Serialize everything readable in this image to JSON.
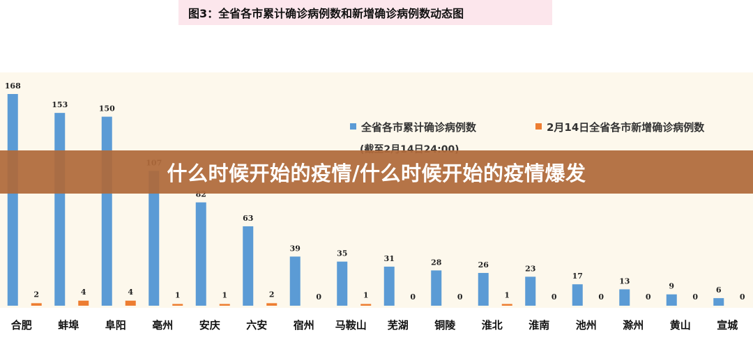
{
  "figure_title": "图3：全省各市累计确诊病例数和新增确诊病例数动态图",
  "overlay_caption": "什么时候开始的疫情/什么时候开始的疫情爆发",
  "colors": {
    "cumulative": "#5b9bd5",
    "new": "#ed7d31",
    "overlay": "#af693a",
    "plot_bg": "#fdf8ec"
  },
  "chart_data": {
    "type": "bar",
    "categories": [
      "合肥",
      "蚌埠",
      "阜阳",
      "亳州",
      "安庆",
      "六安",
      "宿州",
      "马鞍山",
      "芜湖",
      "铜陵",
      "淮北",
      "淮南",
      "池州",
      "滁州",
      "黄山",
      "宣城"
    ],
    "series": [
      {
        "name": "全省各市累计确诊病例数",
        "values": [
          168,
          153,
          150,
          107,
          82,
          63,
          39,
          35,
          31,
          28,
          26,
          23,
          17,
          13,
          9,
          6
        ]
      },
      {
        "name": "2月14日全省各市新增确诊病例数",
        "values": [
          2,
          4,
          4,
          1,
          1,
          2,
          0,
          1,
          0,
          0,
          1,
          0,
          0,
          0,
          0,
          0
        ]
      }
    ],
    "legend_note": "(截至2月14日24:00)",
    "ylim": [
      0,
      168
    ],
    "grid": false,
    "legend_position": "top-right"
  }
}
